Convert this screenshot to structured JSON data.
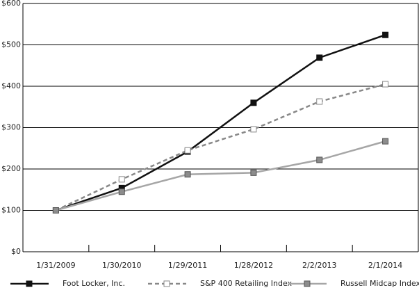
{
  "chart_data": {
    "type": "line",
    "categories": [
      "1/31/2009",
      "1/30/2010",
      "1/29/2011",
      "1/28/2012",
      "2/2/2013",
      "2/1/2014"
    ],
    "series": [
      {
        "name": "Foot Locker, Inc.",
        "color": "#111111",
        "marker_fill": "#111111",
        "dashed": false,
        "values": [
          100,
          154,
          242,
          360,
          469,
          524
        ]
      },
      {
        "name": "S&P 400 Retailing Index",
        "color": "#888888",
        "marker_fill": "#ffffff",
        "dashed": true,
        "values": [
          100,
          175,
          245,
          296,
          363,
          405
        ]
      },
      {
        "name": "Russell Midcap Index",
        "color": "#a6a6a6",
        "marker_fill": "#8c8c8c",
        "dashed": false,
        "values": [
          100,
          145,
          187,
          191,
          222,
          267
        ]
      }
    ],
    "ylim": [
      0,
      600
    ],
    "yticks": [
      {
        "value": 0,
        "label": "$0"
      },
      {
        "value": 100,
        "label": "$100"
      },
      {
        "value": 200,
        "label": "$200"
      },
      {
        "value": 300,
        "label": "$300"
      },
      {
        "value": 400,
        "label": "$400"
      },
      {
        "value": 500,
        "label": "$500"
      },
      {
        "value": 600,
        "label": "$600"
      }
    ],
    "grid": true,
    "legend": "bottom"
  }
}
